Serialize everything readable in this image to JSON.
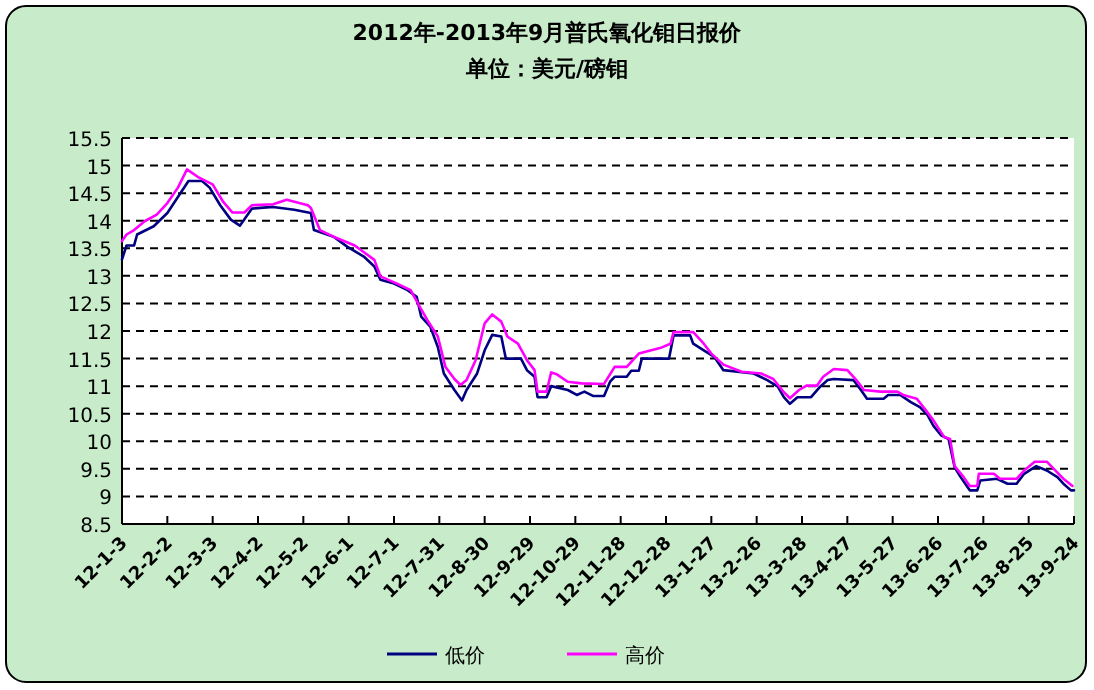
{
  "chart_data": {
    "type": "line",
    "title": "2012年-2013年9月普氏氧化钼日报价",
    "subtitle": "单位：美元/磅钼",
    "xlim": [
      "2012-01-03",
      "2013-09-24"
    ],
    "xticks": [
      {
        "value": "2012-01-03",
        "label": "12-1-3"
      },
      {
        "value": "2012-02-02",
        "label": "12-2-2"
      },
      {
        "value": "2012-03-03",
        "label": "12-3-3"
      },
      {
        "value": "2012-04-02",
        "label": "12-4-2"
      },
      {
        "value": "2012-05-02",
        "label": "12-5-2"
      },
      {
        "value": "2012-06-01",
        "label": "12-6-1"
      },
      {
        "value": "2012-07-01",
        "label": "12-7-1"
      },
      {
        "value": "2012-07-31",
        "label": "12-7-31"
      },
      {
        "value": "2012-08-30",
        "label": "12-8-30"
      },
      {
        "value": "2012-09-29",
        "label": "12-9-29"
      },
      {
        "value": "2012-10-29",
        "label": "12-10-29"
      },
      {
        "value": "2012-11-28",
        "label": "12-11-28"
      },
      {
        "value": "2012-12-28",
        "label": "12-12-28"
      },
      {
        "value": "2013-01-27",
        "label": "13-1-27"
      },
      {
        "value": "2013-02-26",
        "label": "13-2-26"
      },
      {
        "value": "2013-03-28",
        "label": "13-3-28"
      },
      {
        "value": "2013-04-27",
        "label": "13-4-27"
      },
      {
        "value": "2013-05-27",
        "label": "13-5-27"
      },
      {
        "value": "2013-06-26",
        "label": "13-6-26"
      },
      {
        "value": "2013-07-26",
        "label": "13-7-26"
      },
      {
        "value": "2013-08-25",
        "label": "13-8-25"
      },
      {
        "value": "2013-09-24",
        "label": "13-9-24"
      }
    ],
    "ylim": [
      8.5,
      15.5
    ],
    "yticks": [
      8.5,
      9,
      9.5,
      10,
      10.5,
      11,
      11.5,
      12,
      12.5,
      13,
      13.5,
      14,
      14.5,
      15,
      15.5
    ],
    "grid": "y",
    "legend": "bottom",
    "marker": "none",
    "line_style": "solid",
    "series": [
      {
        "name": "低价",
        "color": "#000080",
        "x": [
          "2012-01-03",
          "2012-01-06",
          "2012-01-11",
          "2012-01-13",
          "2012-01-24",
          "2012-02-02",
          "2012-02-16",
          "2012-02-25",
          "2012-03-01",
          "2012-03-08",
          "2012-03-15",
          "2012-03-21",
          "2012-03-29",
          "2012-04-12",
          "2012-04-26",
          "2012-05-07",
          "2012-05-09",
          "2012-05-22",
          "2012-05-31",
          "2012-06-11",
          "2012-06-18",
          "2012-06-22",
          "2012-07-01",
          "2012-07-10",
          "2012-07-16",
          "2012-07-19",
          "2012-07-25",
          "2012-07-30",
          "2012-08-03",
          "2012-08-10",
          "2012-08-15",
          "2012-08-18",
          "2012-08-25",
          "2012-08-30",
          "2012-09-04",
          "2012-09-10",
          "2012-09-13",
          "2012-09-23",
          "2012-09-27",
          "2012-10-02",
          "2012-10-04",
          "2012-10-10",
          "2012-10-13",
          "2012-10-24",
          "2012-10-30",
          "2012-11-04",
          "2012-11-10",
          "2012-11-17",
          "2012-11-21",
          "2012-11-24",
          "2012-12-02",
          "2012-12-05",
          "2012-12-10",
          "2012-12-12",
          "2012-12-30",
          "2013-01-02",
          "2013-01-13",
          "2013-01-15",
          "2013-01-22",
          "2013-01-29",
          "2013-02-04",
          "2013-02-24",
          "2013-03-05",
          "2013-03-12",
          "2013-03-16",
          "2013-03-20",
          "2013-03-25",
          "2013-04-03",
          "2013-04-09",
          "2013-04-14",
          "2013-04-18",
          "2013-05-01",
          "2013-05-06",
          "2013-05-10",
          "2013-05-21",
          "2013-05-24",
          "2013-06-01",
          "2013-06-08",
          "2013-06-14",
          "2013-06-19",
          "2013-06-23",
          "2013-06-28",
          "2013-07-03",
          "2013-07-07",
          "2013-07-11",
          "2013-07-17",
          "2013-07-22",
          "2013-07-24",
          "2013-08-04",
          "2013-08-11",
          "2013-08-17",
          "2013-08-22",
          "2013-08-30",
          "2013-09-06",
          "2013-09-13",
          "2013-09-17",
          "2013-09-22",
          "2013-09-24"
        ],
        "values": [
          13.3,
          13.55,
          13.55,
          13.75,
          13.9,
          14.14,
          14.72,
          14.72,
          14.6,
          14.28,
          14.02,
          13.91,
          14.22,
          14.25,
          14.2,
          14.14,
          13.83,
          13.71,
          13.53,
          13.35,
          13.17,
          12.93,
          12.86,
          12.74,
          12.62,
          12.26,
          12.08,
          11.71,
          11.23,
          10.93,
          10.74,
          10.93,
          11.23,
          11.65,
          11.93,
          11.9,
          11.5,
          11.5,
          11.29,
          11.17,
          10.8,
          10.8,
          11.0,
          10.93,
          10.84,
          10.9,
          10.82,
          10.82,
          11.08,
          11.17,
          11.17,
          11.28,
          11.28,
          11.5,
          11.5,
          11.92,
          11.92,
          11.77,
          11.65,
          11.53,
          11.29,
          11.23,
          11.11,
          10.99,
          10.8,
          10.68,
          10.8,
          10.8,
          10.99,
          11.11,
          11.13,
          11.11,
          10.93,
          10.77,
          10.77,
          10.84,
          10.84,
          10.71,
          10.62,
          10.48,
          10.28,
          10.11,
          10.04,
          9.53,
          9.35,
          9.11,
          9.11,
          9.29,
          9.32,
          9.23,
          9.23,
          9.41,
          9.55,
          9.47,
          9.35,
          9.23,
          9.11,
          9.11
        ]
      },
      {
        "name": "高价",
        "color": "#ff00ff",
        "x": [
          "2012-01-03",
          "2012-01-06",
          "2012-01-11",
          "2012-01-18",
          "2012-01-26",
          "2012-02-02",
          "2012-02-09",
          "2012-02-15",
          "2012-02-23",
          "2012-03-03",
          "2012-03-10",
          "2012-03-16",
          "2012-03-24",
          "2012-03-29",
          "2012-04-12",
          "2012-04-21",
          "2012-05-05",
          "2012-05-07",
          "2012-05-13",
          "2012-05-22",
          "2012-06-05",
          "2012-06-18",
          "2012-06-22",
          "2012-07-03",
          "2012-07-12",
          "2012-07-18",
          "2012-07-23",
          "2012-07-30",
          "2012-08-04",
          "2012-08-10",
          "2012-08-14",
          "2012-08-18",
          "2012-08-24",
          "2012-08-30",
          "2012-09-04",
          "2012-09-10",
          "2012-09-14",
          "2012-09-21",
          "2012-09-27",
          "2012-10-02",
          "2012-10-04",
          "2012-10-10",
          "2012-10-13",
          "2012-10-17",
          "2012-10-24",
          "2012-11-02",
          "2012-11-17",
          "2012-11-24",
          "2012-12-02",
          "2012-12-10",
          "2012-12-24",
          "2012-12-31",
          "2013-01-02",
          "2013-01-15",
          "2013-01-22",
          "2013-01-27",
          "2013-02-04",
          "2013-02-16",
          "2013-03-01",
          "2013-03-09",
          "2013-03-16",
          "2013-03-20",
          "2013-03-26",
          "2013-03-31",
          "2013-04-07",
          "2013-04-11",
          "2013-04-18",
          "2013-04-27",
          "2013-05-03",
          "2013-05-08",
          "2013-05-19",
          "2013-05-30",
          "2013-06-03",
          "2013-06-12",
          "2013-06-18",
          "2013-06-23",
          "2013-06-30",
          "2013-07-04",
          "2013-07-07",
          "2013-07-13",
          "2013-07-17",
          "2013-07-22",
          "2013-07-23",
          "2013-08-02",
          "2013-08-06",
          "2013-08-17",
          "2013-08-22",
          "2013-08-29",
          "2013-09-06",
          "2013-09-13",
          "2013-09-17",
          "2013-09-23"
        ],
        "values": [
          13.63,
          13.75,
          13.83,
          13.99,
          14.11,
          14.32,
          14.6,
          14.93,
          14.78,
          14.66,
          14.34,
          14.15,
          14.15,
          14.28,
          14.3,
          14.38,
          14.28,
          14.23,
          13.83,
          13.71,
          13.55,
          13.29,
          12.99,
          12.86,
          12.74,
          12.44,
          12.2,
          11.9,
          11.35,
          11.13,
          11.02,
          11.11,
          11.47,
          12.14,
          12.3,
          12.17,
          11.9,
          11.77,
          11.47,
          11.29,
          10.9,
          10.9,
          11.25,
          11.21,
          11.08,
          11.05,
          11.04,
          11.35,
          11.35,
          11.59,
          11.69,
          11.77,
          11.98,
          11.98,
          11.77,
          11.59,
          11.39,
          11.26,
          11.23,
          11.13,
          10.89,
          10.78,
          10.93,
          11.01,
          11.01,
          11.17,
          11.31,
          11.29,
          11.11,
          10.93,
          10.9,
          10.9,
          10.84,
          10.77,
          10.56,
          10.38,
          10.08,
          10.04,
          9.55,
          9.35,
          9.19,
          9.19,
          9.41,
          9.41,
          9.32,
          9.32,
          9.47,
          9.63,
          9.63,
          9.43,
          9.32,
          9.19
        ]
      }
    ]
  }
}
